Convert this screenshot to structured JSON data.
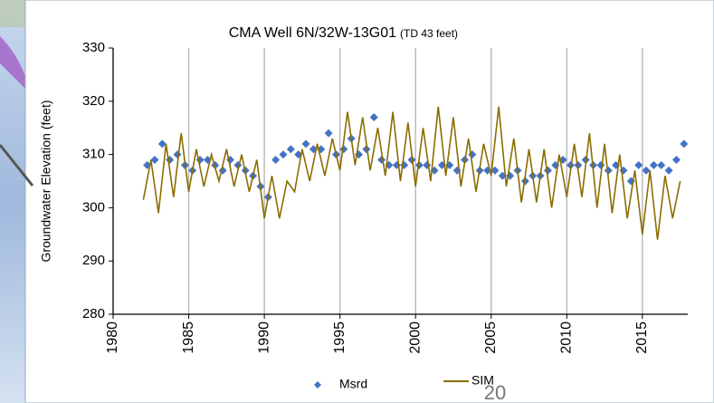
{
  "chart_data": {
    "type": "line",
    "title": "CMA Well   6N/32W-13G01",
    "subtitle": "(TD 43 feet)",
    "y_label": "Groundwater Elevation (feet)",
    "xlim": [
      1980,
      2018
    ],
    "xticks": [
      1980,
      1985,
      1990,
      1995,
      2000,
      2005,
      2010,
      2015
    ],
    "ylim": [
      280,
      330
    ],
    "yticks": [
      280,
      290,
      300,
      310,
      320,
      330
    ],
    "grid": "x",
    "series": [
      {
        "name": "Msrd",
        "style": "marker",
        "color": "#4472c4",
        "x": [
          1982.25,
          1982.75,
          1983.25,
          1983.75,
          1984.25,
          1984.75,
          1985.25,
          1985.75,
          1986.25,
          1986.75,
          1987.25,
          1987.75,
          1988.25,
          1988.75,
          1989.25,
          1989.75,
          1990.25,
          1990.75,
          1991.25,
          1991.75,
          1992.25,
          1992.75,
          1993.25,
          1993.75,
          1994.25,
          1994.75,
          1995.25,
          1995.75,
          1996.25,
          1996.75,
          1997.25,
          1997.75,
          1998.25,
          1998.75,
          1999.25,
          1999.75,
          2000.25,
          2000.75,
          2001.25,
          2001.75,
          2002.25,
          2002.75,
          2003.25,
          2003.75,
          2004.25,
          2004.75,
          2005.25,
          2005.75,
          2006.25,
          2006.75,
          2007.25,
          2007.75,
          2008.25,
          2008.75,
          2009.25,
          2009.75,
          2010.25,
          2010.75,
          2011.25,
          2011.75,
          2012.25,
          2012.75,
          2013.25,
          2013.75,
          2014.25,
          2014.75,
          2015.25,
          2015.75,
          2016.25,
          2016.75,
          2017.25,
          2017.75
        ],
        "values": [
          308,
          309,
          312,
          309,
          310,
          308,
          307,
          309,
          309,
          308,
          307,
          309,
          308,
          307,
          306,
          304,
          302,
          309,
          310,
          311,
          310,
          312,
          311,
          311,
          314,
          310,
          311,
          313,
          310,
          311,
          317,
          309,
          308,
          308,
          308,
          309,
          308,
          308,
          307,
          308,
          308,
          307,
          309,
          310,
          307,
          307,
          307,
          306,
          306,
          307,
          305,
          306,
          306,
          307,
          308,
          309,
          308,
          308,
          309,
          308,
          308,
          307,
          308,
          307,
          305,
          308,
          307,
          308,
          308,
          307,
          309,
          312
        ]
      },
      {
        "name": "SIM",
        "style": "line",
        "color": "#8b6d00",
        "x": [
          1982,
          1982.5,
          1983,
          1983.5,
          1984,
          1984.5,
          1985,
          1985.5,
          1986,
          1986.5,
          1987,
          1987.5,
          1988,
          1988.5,
          1989,
          1989.5,
          1990,
          1990.5,
          1991,
          1991.5,
          1992,
          1992.5,
          1993,
          1993.5,
          1994,
          1994.5,
          1995,
          1995.5,
          1996,
          1996.5,
          1997,
          1997.5,
          1998,
          1998.5,
          1999,
          1999.5,
          2000,
          2000.5,
          2001,
          2001.5,
          2002,
          2002.5,
          2003,
          2003.5,
          2004,
          2004.5,
          2005,
          2005.5,
          2006,
          2006.5,
          2007,
          2007.5,
          2008,
          2008.5,
          2009,
          2009.5,
          2010,
          2010.5,
          2011,
          2011.5,
          2012,
          2012.5,
          2013,
          2013.5,
          2014,
          2014.5,
          2015,
          2015.5,
          2016,
          2016.5,
          2017,
          2017.5
        ],
        "values": [
          301.5,
          309,
          299,
          312,
          302,
          314,
          303,
          311,
          304,
          310,
          305,
          311,
          304,
          310,
          303,
          309,
          298,
          306,
          298,
          305,
          303,
          311,
          305,
          312,
          306,
          313,
          307,
          318,
          308,
          317,
          307,
          315,
          306,
          318,
          305,
          316,
          304,
          315,
          305,
          319,
          306,
          317,
          304,
          313,
          303,
          312,
          306,
          319,
          304,
          313,
          301,
          311,
          301,
          311,
          300,
          310,
          302,
          312,
          302,
          314,
          300,
          312,
          299,
          310,
          298,
          307,
          295,
          307,
          294,
          306,
          298,
          305
        ]
      }
    ]
  },
  "page_number": "20"
}
